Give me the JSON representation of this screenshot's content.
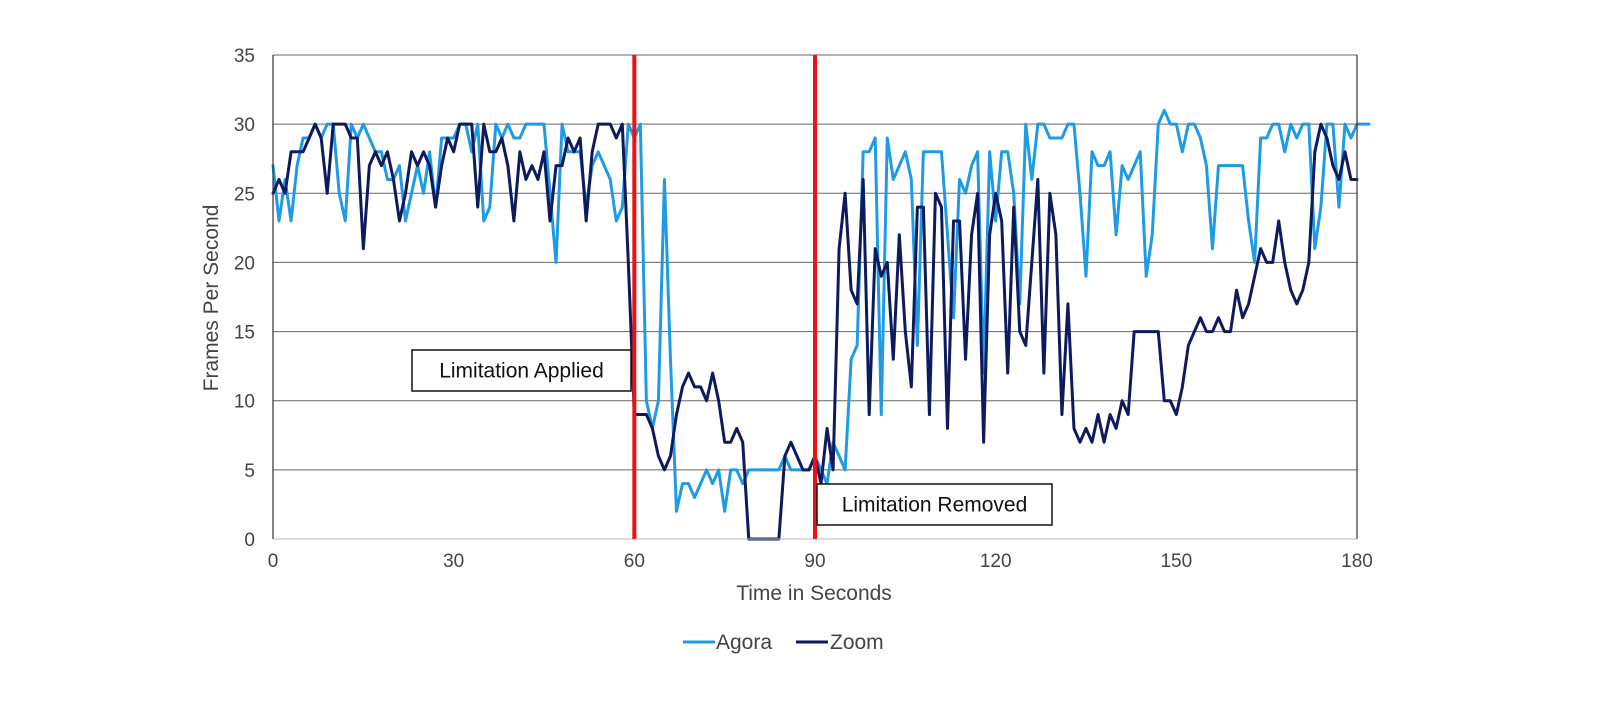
{
  "chart_data": {
    "type": "line",
    "xlabel": "Time in Seconds",
    "ylabel": "Frames Per Second",
    "xlim": [
      0,
      180
    ],
    "ylim": [
      0,
      35
    ],
    "xticks": [
      0,
      30,
      60,
      90,
      120,
      150,
      180
    ],
    "yticks": [
      0,
      5,
      10,
      15,
      20,
      25,
      30,
      35
    ],
    "grid": "horizontal",
    "legend_position": "bottom",
    "series": [
      {
        "name": "Agora",
        "color": "#1f9be6",
        "values": [
          27,
          23,
          26,
          23,
          27,
          29,
          29,
          30,
          29,
          30,
          30,
          25,
          23,
          30,
          29,
          30,
          29,
          28,
          28,
          26,
          26,
          27,
          23,
          25,
          27,
          25,
          28,
          24,
          29,
          29,
          29,
          30,
          30,
          28,
          30,
          23,
          24,
          30,
          29,
          30,
          29,
          29,
          30,
          30,
          30,
          30,
          25,
          20,
          30,
          28,
          28,
          28,
          24,
          27,
          28,
          27,
          26,
          23,
          24,
          30,
          29,
          30,
          10,
          8,
          10,
          26,
          13,
          2,
          4,
          4,
          3,
          4,
          5,
          4,
          5,
          2,
          5,
          5,
          4,
          5,
          5,
          5,
          5,
          5,
          5,
          6,
          5,
          5,
          5,
          5,
          6,
          5,
          4,
          7,
          6,
          5,
          13,
          14,
          28,
          28,
          29,
          9,
          29,
          26,
          27,
          28,
          26,
          14,
          28,
          28,
          28,
          28,
          22,
          16,
          26,
          25,
          27,
          28,
          12,
          28,
          23,
          28,
          28,
          25,
          17,
          30,
          26,
          30,
          30,
          29,
          29,
          29,
          30,
          30,
          25,
          19,
          28,
          27,
          27,
          28,
          22,
          27,
          26,
          27,
          28,
          19,
          22,
          30,
          31,
          30,
          30,
          28,
          30,
          30,
          29,
          27,
          21,
          27,
          27,
          27,
          27,
          27,
          23,
          20,
          29,
          29,
          30,
          30,
          28,
          30,
          29,
          30,
          30,
          21,
          24,
          30,
          30,
          24,
          30,
          29,
          30,
          30,
          30
        ]
      },
      {
        "name": "Zoom",
        "color": "#0d1b5e",
        "values": [
          25,
          26,
          25,
          28,
          28,
          28,
          29,
          30,
          29,
          25,
          30,
          30,
          30,
          29,
          29,
          21,
          27,
          28,
          27,
          28,
          26,
          23,
          25,
          28,
          27,
          28,
          27,
          24,
          27,
          29,
          28,
          30,
          30,
          30,
          24,
          30,
          28,
          28,
          29,
          27,
          23,
          28,
          26,
          27,
          26,
          28,
          23,
          27,
          27,
          29,
          28,
          29,
          23,
          28,
          30,
          30,
          30,
          29,
          30,
          20,
          9,
          9,
          9,
          8,
          6,
          5,
          6,
          9,
          11,
          12,
          11,
          11,
          10,
          12,
          10,
          7,
          7,
          8,
          7,
          0,
          0,
          0,
          0,
          0,
          0,
          6,
          7,
          6,
          5,
          5,
          6,
          4,
          8,
          5,
          21,
          25,
          18,
          17,
          26,
          9,
          21,
          19,
          20,
          13,
          22,
          15,
          11,
          24,
          24,
          9,
          25,
          24,
          8,
          23,
          23,
          13,
          22,
          25,
          7,
          22,
          25,
          23,
          12,
          24,
          15,
          14,
          20,
          26,
          12,
          25,
          22,
          9,
          17,
          8,
          7,
          8,
          7,
          9,
          7,
          9,
          8,
          10,
          9,
          15,
          15,
          15,
          15,
          15,
          10,
          10,
          9,
          11,
          14,
          15,
          16,
          15,
          15,
          16,
          15,
          15,
          18,
          16,
          17,
          19,
          21,
          20,
          20,
          23,
          20,
          18,
          17,
          18,
          20,
          28,
          30,
          29,
          27,
          26,
          28,
          26,
          26
        ]
      }
    ],
    "annotations": [
      {
        "x": 60,
        "label": "Limitation Applied",
        "line_color": "#ee1111"
      },
      {
        "x": 90,
        "label": "Limitation Removed",
        "line_color": "#ee1111"
      }
    ]
  }
}
